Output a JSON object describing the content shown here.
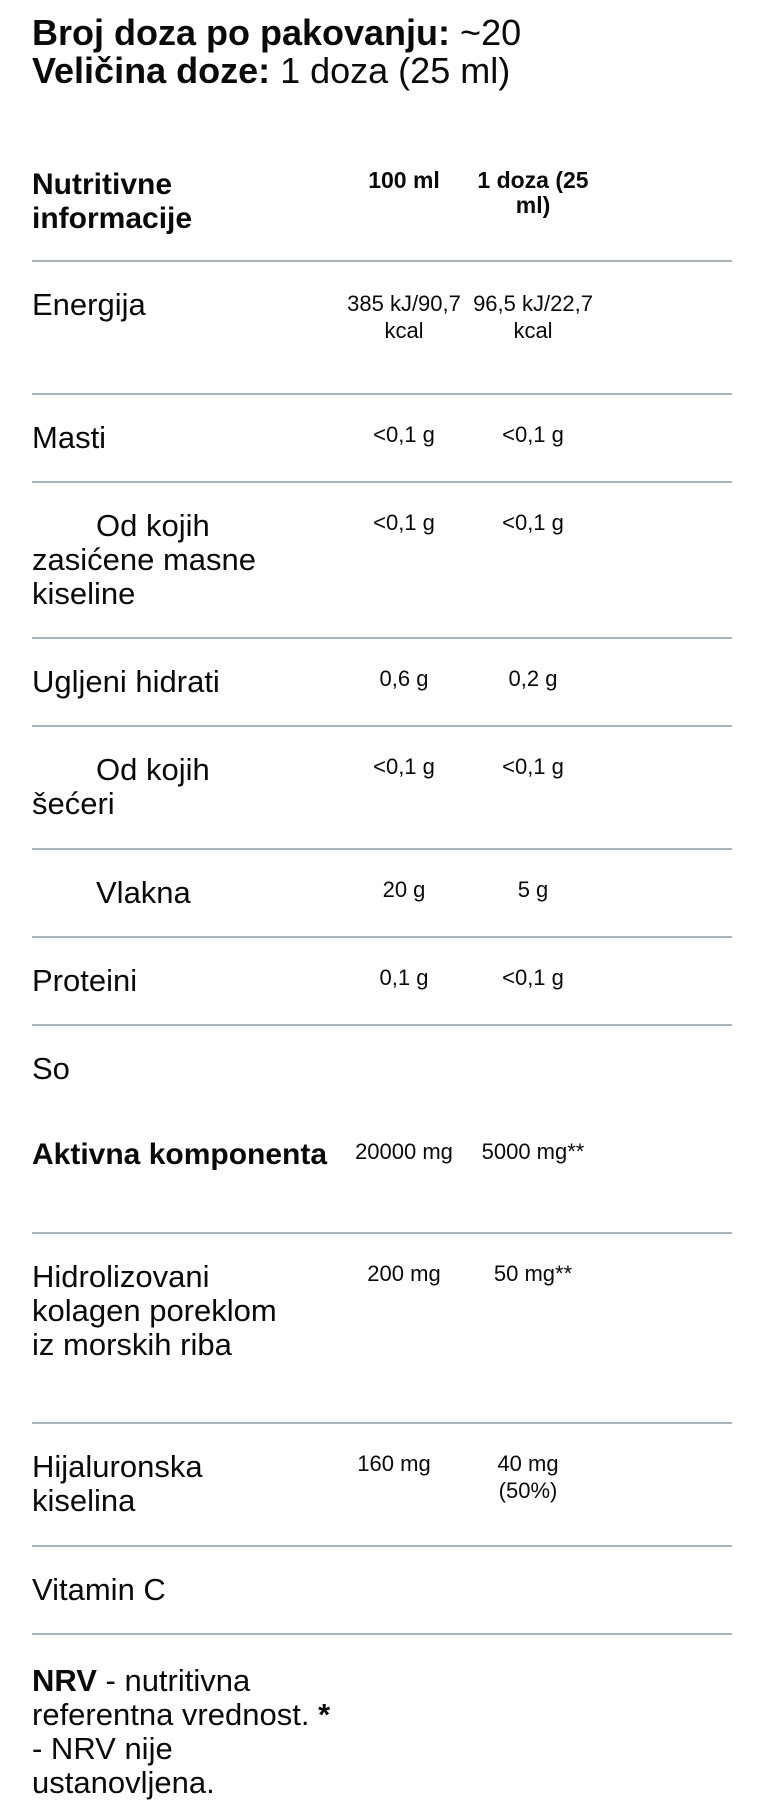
{
  "header": {
    "servings_label": "Broj doza po pakovanju:",
    "servings_value": "~20",
    "dose_label": "Veličina doze:",
    "dose_value": "1 doza (25 ml)"
  },
  "table": {
    "head": {
      "label": "Nutritivne informacije",
      "col1": "100 ml",
      "col2": "1 doza (25 ml)"
    },
    "rows": [
      {
        "label": "Energija",
        "col1": "385 kJ/90,7 kcal",
        "col2": "96,5 kJ/22,7 kcal"
      },
      {
        "label": "Masti",
        "col1": "<0,1 g",
        "col2": "<0,1 g"
      },
      {
        "label_first": "Od kojih",
        "label_rest": "zasićene masne kiseline",
        "col1": "<0,1 g",
        "col2": "<0,1 g"
      },
      {
        "label": "Ugljeni hidrati",
        "col1": "0,6 g",
        "col2": "0,2 g"
      },
      {
        "label_first": "Od kojih",
        "label_rest": "šećeri",
        "col1": "<0,1 g",
        "col2": "<0,1 g"
      },
      {
        "label_first": "Vlakna",
        "label_rest": "",
        "col1": "20 g",
        "col2": "5 g"
      },
      {
        "label": "Proteini",
        "col1": "0,1 g",
        "col2": "<0,1 g"
      },
      {
        "label": "So",
        "col1": "",
        "col2": ""
      },
      {
        "label": "Aktivna komponenta",
        "col1": "20000 mg",
        "col2": "5000 mg**"
      },
      {
        "label": "Hidrolizovani kolagen poreklom iz morskih riba",
        "col1": "200 mg",
        "col2": "50 mg**"
      },
      {
        "label": "Hijaluronska kiselina",
        "col1": "160 mg",
        "col2": "40 mg (50%)"
      },
      {
        "label": "Vitamin C",
        "col1": "",
        "col2": ""
      }
    ]
  },
  "footnote": {
    "nrv_bold": "NRV",
    "nrv_text": " - nutritivna referentna vrednost. ",
    "star_bold": "*",
    "star_text": " - NRV nije ustanovljena."
  }
}
